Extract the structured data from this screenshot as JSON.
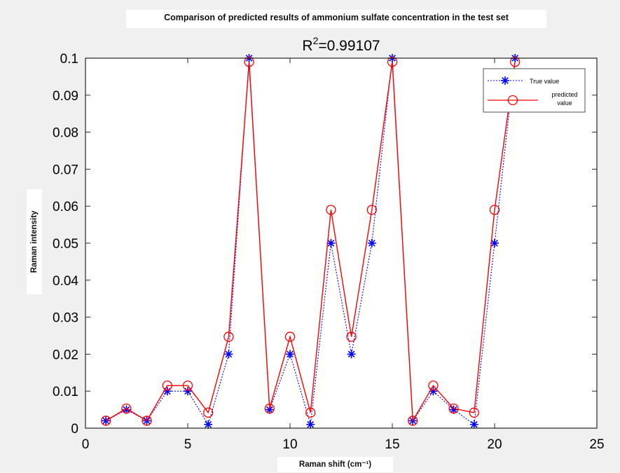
{
  "chart_data": {
    "type": "line",
    "title": "Comparison  of predicted  results  of  ammonium  sulfate  concentration  in  the  test  set",
    "subtitle_base": "R",
    "subtitle_sup": "2",
    "subtitle_rest": "=0.99107",
    "xlabel": "Raman  shift  (cm⁻¹)",
    "ylabel": "Raman  intensity",
    "xlim": [
      0,
      25
    ],
    "ylim": [
      0,
      0.1
    ],
    "xticks": [
      0,
      5,
      10,
      15,
      20,
      25
    ],
    "xtick_labels": [
      "0",
      "5",
      "10",
      "15",
      "20",
      "25"
    ],
    "yticks": [
      0,
      0.01,
      0.02,
      0.03,
      0.04,
      0.05,
      0.06,
      0.07,
      0.08,
      0.09,
      0.1
    ],
    "ytick_labels": [
      "0",
      "0.01",
      "0.02",
      "0.03",
      "0.04",
      "0.05",
      "0.06",
      "0.07",
      "0.08",
      "0.09",
      "0.1"
    ],
    "grid": false,
    "legend_position": "top-right",
    "x": [
      1,
      2,
      3,
      4,
      5,
      6,
      7,
      8,
      9,
      10,
      11,
      12,
      13,
      14,
      15,
      16,
      17,
      18,
      19,
      20,
      21
    ],
    "series": [
      {
        "name": "True value",
        "color": "#0000ff",
        "line_style": "dotted",
        "marker": "asterisk",
        "values": [
          0.002,
          0.005,
          0.002,
          0.01,
          0.01,
          0.001,
          0.02,
          0.1,
          0.005,
          0.02,
          0.001,
          0.05,
          0.02,
          0.05,
          0.1,
          0.002,
          0.01,
          0.005,
          0.001,
          0.05,
          0.1
        ]
      },
      {
        "name": "predicted value",
        "legend_lines": [
          "predicted",
          "value"
        ],
        "color": "#ff0000",
        "line_style": "solid",
        "marker": "circle",
        "values": [
          0.002,
          0.0053,
          0.002,
          0.0115,
          0.0115,
          0.0042,
          0.0247,
          0.099,
          0.0053,
          0.0247,
          0.0042,
          0.059,
          0.0247,
          0.059,
          0.099,
          0.002,
          0.0115,
          0.0053,
          0.0042,
          0.059,
          0.099
        ]
      }
    ]
  }
}
